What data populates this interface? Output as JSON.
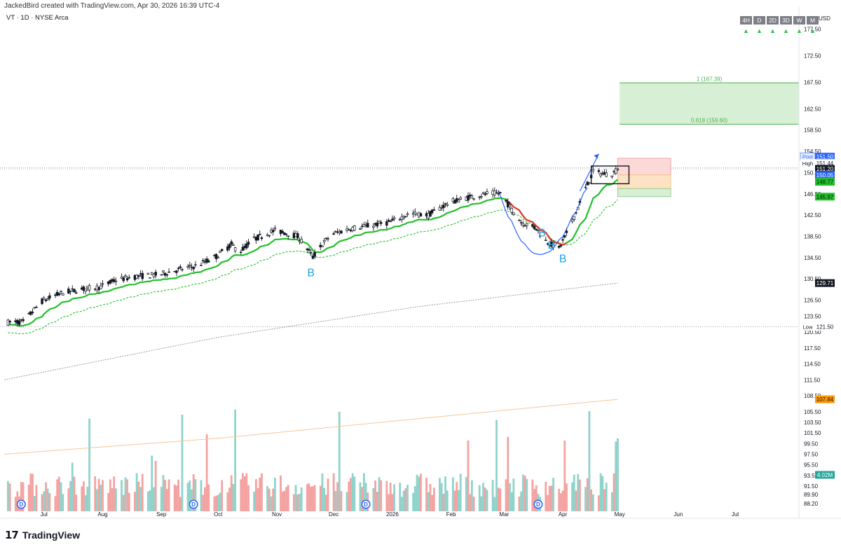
{
  "header": {
    "created_by": "JackedBird created with TradingView.com, Apr 30, 2026 16:39 UTC-4",
    "symbol_line": "VT · 1D · NYSE Arca"
  },
  "timeframes": [
    {
      "label": "4H",
      "arrow": "▲"
    },
    {
      "label": "D",
      "arrow": "▲"
    },
    {
      "label": "2D",
      "arrow": "▲"
    },
    {
      "label": "3D",
      "arrow": "▲"
    },
    {
      "label": "W",
      "arrow": "▲"
    },
    {
      "label": "M",
      "arrow": "▲"
    }
  ],
  "footer": {
    "brand": "TradingView",
    "logo_icon": "tradingview-logo-icon"
  },
  "colors": {
    "up": "#26a69a",
    "down": "#ef5350",
    "vol_up": "#8fd3cb",
    "vol_down": "#f3a3a1",
    "ema_fast": "#22c02a",
    "ema_slow": "#22c02a",
    "sma_long": "#9e9e9e",
    "sma_xlong": "#f7c69a",
    "ema_fast_bear": "#e53935",
    "pattern": "#2962ff",
    "b_label": "#1aa3e8",
    "fib_zone": "#d7efd4",
    "fib_line": "#4caf50"
  },
  "chart_data": {
    "type": "candlestick",
    "symbol": "VT",
    "interval": "1D",
    "exchange": "NYSE Arca",
    "currency": "USD",
    "ylim": [
      86.5,
      181
    ],
    "price_ticks": [
      177.5,
      172.5,
      167.5,
      162.5,
      158.5,
      154.5,
      150.5,
      146.5,
      142.5,
      138.5,
      134.5,
      130.5,
      126.5,
      123.5,
      120.5,
      117.5,
      114.5,
      111.5,
      108.5,
      105.5,
      103.5,
      101.5,
      99.5,
      97.5,
      95.5,
      93.5,
      91.5,
      89.9,
      88.2
    ],
    "date_ticks": [
      {
        "label": "Jul",
        "date": "2025-07-01"
      },
      {
        "label": "Aug",
        "date": "2025-08-01"
      },
      {
        "label": "Sep",
        "date": "2025-09-01"
      },
      {
        "label": "Oct",
        "date": "2025-10-01"
      },
      {
        "label": "Nov",
        "date": "2025-11-01"
      },
      {
        "label": "Dec",
        "date": "2025-12-01"
      },
      {
        "label": "2026",
        "date": "2026-01-01"
      },
      {
        "label": "Feb",
        "date": "2026-02-01"
      },
      {
        "label": "Mar",
        "date": "2026-03-01"
      },
      {
        "label": "Apr",
        "date": "2026-04-01"
      },
      {
        "label": "May",
        "date": "2026-05-01"
      },
      {
        "label": "Jun",
        "date": "2026-06-01"
      },
      {
        "label": "Jul",
        "date": "2026-07-01"
      }
    ],
    "start_date": "2025-06-12",
    "end_date": "2026-04-30",
    "close_path": [
      [
        "2025-06-12",
        122.3
      ],
      [
        "2025-06-20",
        122.4
      ],
      [
        "2025-06-30",
        126.3
      ],
      [
        "2025-07-10",
        127.8
      ],
      [
        "2025-07-20",
        128.5
      ],
      [
        "2025-07-31",
        129.0
      ],
      [
        "2025-08-08",
        130.3
      ],
      [
        "2025-08-20",
        131.0
      ],
      [
        "2025-08-31",
        131.3
      ],
      [
        "2025-09-10",
        132.2
      ],
      [
        "2025-09-20",
        133.0
      ],
      [
        "2025-09-30",
        134.7
      ],
      [
        "2025-10-08",
        137.0
      ],
      [
        "2025-10-12",
        135.5
      ],
      [
        "2025-10-20",
        138.0
      ],
      [
        "2025-10-31",
        139.6
      ],
      [
        "2025-11-05",
        139.2
      ],
      [
        "2025-11-12",
        138.5
      ],
      [
        "2025-11-17",
        136.2
      ],
      [
        "2025-11-20",
        134.6
      ],
      [
        "2025-11-25",
        137.0
      ],
      [
        "2025-11-30",
        138.9
      ],
      [
        "2025-12-10",
        140.0
      ],
      [
        "2025-12-20",
        140.5
      ],
      [
        "2025-12-31",
        141.2
      ],
      [
        "2026-01-10",
        142.8
      ],
      [
        "2026-01-20",
        142.5
      ],
      [
        "2026-01-31",
        144.9
      ],
      [
        "2026-02-10",
        145.8
      ],
      [
        "2026-02-20",
        146.5
      ],
      [
        "2026-02-27",
        146.6
      ],
      [
        "2026-03-05",
        143.5
      ],
      [
        "2026-03-10",
        141.2
      ],
      [
        "2026-03-18",
        140.0
      ],
      [
        "2026-03-23",
        137.6
      ],
      [
        "2026-03-30",
        136.2
      ],
      [
        "2026-04-03",
        139.0
      ],
      [
        "2026-04-08",
        143.0
      ],
      [
        "2026-04-13",
        147.5
      ],
      [
        "2026-04-17",
        150.6
      ],
      [
        "2026-04-22",
        150.3
      ],
      [
        "2026-04-27",
        150.2
      ],
      [
        "2026-04-30",
        151.2
      ]
    ],
    "series": [
      {
        "name": "Close",
        "type": "candles",
        "last": 151.2
      },
      {
        "name": "EMA fast",
        "type": "line",
        "last": 148.77
      },
      {
        "name": "EMA slow",
        "type": "dashed-line",
        "last": 145.97
      },
      {
        "name": "SMA 200",
        "type": "dotted-line",
        "last": 129.71
      },
      {
        "name": "SMA long",
        "type": "line",
        "last": 107.84
      }
    ],
    "volume": {
      "last_label": "4.02M"
    },
    "fib": [
      {
        "label": "1 (167.39)",
        "value": 167.39
      },
      {
        "label": "0.618 (159.60)",
        "value": 159.6
      }
    ],
    "position": {
      "stop_top": 153.2,
      "entry": 150.05,
      "target": 147.5,
      "zone_bottom": 145.97,
      "start": "2026-04-30",
      "end": "2026-05-28"
    },
    "consolidation_box": {
      "start": "2026-04-16",
      "end": "2026-04-30",
      "high": 151.44,
      "low": 148.4
    },
    "reference_lines": [
      {
        "label": "High",
        "value": 151.44
      },
      {
        "label": "Low",
        "value": 121.5
      },
      {
        "label": "",
        "value": 151.2
      }
    ],
    "price_labels": [
      {
        "text": "Post",
        "value": "151.50",
        "price": 153.5,
        "style": "post"
      },
      {
        "text": "High",
        "value": "151.44",
        "price": 152.3,
        "style": "plain"
      },
      {
        "text": "",
        "value": "151.20",
        "price": 151.2,
        "style": "dark"
      },
      {
        "text": "",
        "value": "150.05",
        "price": 150.05,
        "style": "blue"
      },
      {
        "text": "",
        "value": "148.77",
        "price": 148.77,
        "style": "green"
      },
      {
        "text": "",
        "value": "145.97",
        "price": 145.97,
        "style": "green"
      },
      {
        "text": "",
        "value": "129.71",
        "price": 129.71,
        "style": "dark"
      },
      {
        "text": "Low",
        "value": "121.50",
        "price": 121.5,
        "style": "plain"
      },
      {
        "text": "",
        "value": "107.84",
        "price": 107.84,
        "style": "orange"
      }
    ],
    "annotations": [
      {
        "text": "B",
        "date": "2025-11-19",
        "price": 131.0
      },
      {
        "text": "B",
        "date": "2026-03-21",
        "price": 138.5
      },
      {
        "text": "B",
        "date": "2026-03-26",
        "price": 136.2
      },
      {
        "text": "B",
        "date": "2026-04-01",
        "price": 133.6
      }
    ],
    "dividend_markers": [
      {
        "text": "D",
        "date": "2025-06-19"
      },
      {
        "text": "D",
        "date": "2025-09-18"
      },
      {
        "text": "D",
        "date": "2025-12-18"
      },
      {
        "text": "D",
        "date": "2026-03-19"
      }
    ]
  }
}
